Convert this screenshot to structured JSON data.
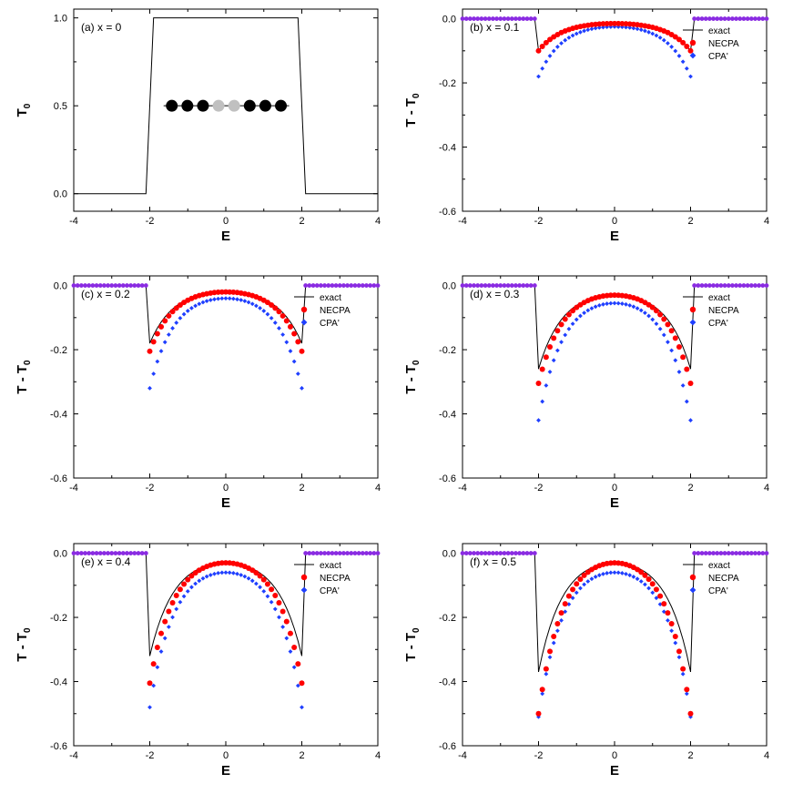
{
  "chart_data": [
    {
      "id": "a",
      "type": "line",
      "panel_label": "(a)  x = 0",
      "xlabel": "E",
      "ylabel": "T",
      "ylabel_sub": "0",
      "xlim": [
        -4,
        4
      ],
      "ylim": [
        -0.1,
        1.05
      ],
      "xticks": [
        "-4",
        "-2",
        "0",
        "2",
        "4"
      ],
      "yticks": [
        "0.0",
        "0.5",
        "1.0"
      ],
      "series": [
        {
          "x": [
            -4,
            -2.1,
            -1.9,
            1.9,
            2.1,
            4
          ],
          "y": [
            0,
            0,
            1,
            1,
            0,
            0
          ]
        }
      ],
      "inset_chain": {
        "atoms": [
          "host",
          "host",
          "host",
          "impurity",
          "impurity",
          "host",
          "host",
          "host"
        ],
        "colors": {
          "host": "#000000",
          "impurity": "#c0c0c0"
        }
      }
    },
    {
      "id": "b",
      "type": "line",
      "panel_label": "(b)  x = 0.1",
      "xlabel": "E",
      "ylabel": "T - T",
      "ylabel_sub": "0",
      "xlim": [
        -4,
        4
      ],
      "ylim": [
        -0.6,
        0.03
      ],
      "xticks": [
        "-4",
        "-2",
        "0",
        "2",
        "4"
      ],
      "yticks": [
        "0.0",
        "-0.2",
        "-0.4",
        "-0.6"
      ],
      "legend": [
        "exact",
        "NECPA",
        "CPA'"
      ],
      "params": {
        "exact_edge": -0.1,
        "exact_center": -0.015,
        "necpa_edge": -0.1,
        "necpa_center": -0.015,
        "cpa_edge": -0.18,
        "cpa_center": -0.025
      }
    },
    {
      "id": "c",
      "type": "line",
      "panel_label": "(c)  x = 0.2",
      "xlabel": "E",
      "ylabel": "T - T",
      "ylabel_sub": "0",
      "xlim": [
        -4,
        4
      ],
      "ylim": [
        -0.6,
        0.03
      ],
      "xticks": [
        "-4",
        "-2",
        "0",
        "2",
        "4"
      ],
      "yticks": [
        "0.0",
        "-0.2",
        "-0.4",
        "-0.6"
      ],
      "legend": [
        "exact",
        "NECPA",
        "CPA'"
      ],
      "params": {
        "exact_edge": -0.18,
        "exact_center": -0.02,
        "necpa_edge": -0.205,
        "necpa_center": -0.02,
        "cpa_edge": -0.32,
        "cpa_center": -0.04
      }
    },
    {
      "id": "d",
      "type": "line",
      "panel_label": "(d)  x = 0.3",
      "xlabel": "E",
      "ylabel": "T - T",
      "ylabel_sub": "0",
      "xlim": [
        -4,
        4
      ],
      "ylim": [
        -0.6,
        0.03
      ],
      "xticks": [
        "-4",
        "-2",
        "0",
        "2",
        "4"
      ],
      "yticks": [
        "0.0",
        "-0.2",
        "-0.4",
        "-0.6"
      ],
      "legend": [
        "exact",
        "NECPA",
        "CPA'"
      ],
      "params": {
        "exact_edge": -0.26,
        "exact_center": -0.03,
        "necpa_edge": -0.305,
        "necpa_center": -0.03,
        "cpa_edge": -0.42,
        "cpa_center": -0.055
      }
    },
    {
      "id": "e",
      "type": "line",
      "panel_label": "(e)  x = 0.4",
      "xlabel": "E",
      "ylabel": "T - T",
      "ylabel_sub": "0",
      "xlim": [
        -4,
        4
      ],
      "ylim": [
        -0.6,
        0.03
      ],
      "xticks": [
        "-4",
        "-2",
        "0",
        "2",
        "4"
      ],
      "yticks": [
        "0.0",
        "-0.2",
        "-0.4",
        "-0.6"
      ],
      "legend": [
        "exact",
        "NECPA",
        "CPA'"
      ],
      "params": {
        "exact_edge": -0.32,
        "exact_center": -0.03,
        "necpa_edge": -0.405,
        "necpa_center": -0.03,
        "cpa_edge": -0.48,
        "cpa_center": -0.06
      }
    },
    {
      "id": "f",
      "type": "line",
      "panel_label": "(f)  x = 0.5",
      "xlabel": "E",
      "ylabel": "T - T",
      "ylabel_sub": "0",
      "xlim": [
        -4,
        4
      ],
      "ylim": [
        -0.6,
        0.03
      ],
      "xticks": [
        "-4",
        "-2",
        "0",
        "2",
        "4"
      ],
      "yticks": [
        "0.0",
        "-0.2",
        "-0.4",
        "-0.6"
      ],
      "legend": [
        "exact",
        "NECPA",
        "CPA'"
      ],
      "params": {
        "exact_edge": -0.37,
        "exact_center": -0.03,
        "necpa_edge": -0.5,
        "necpa_center": -0.03,
        "cpa_edge": -0.51,
        "cpa_center": -0.06
      }
    }
  ],
  "style": {
    "exact_color": "#000000",
    "necpa_color": "#ff0000",
    "cpa_color": "#1f3fff",
    "flat_marker_color": "#8a2be2"
  }
}
